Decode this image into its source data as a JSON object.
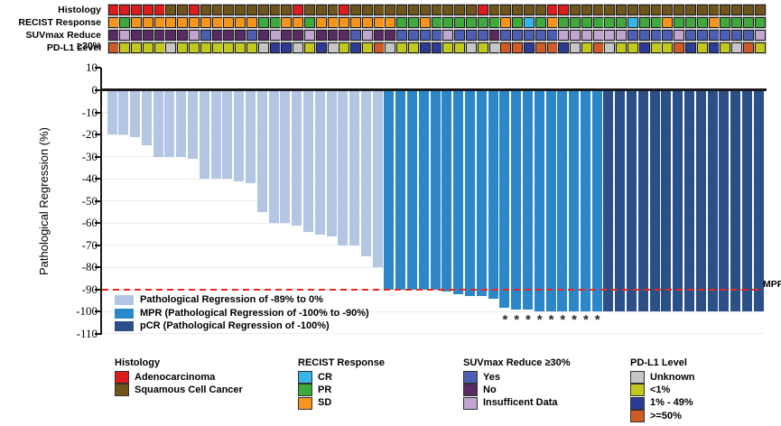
{
  "tracks": {
    "rows": [
      {
        "key": "histology",
        "label": "Histology",
        "codes": [
          "A",
          "A",
          "A",
          "A",
          "A",
          "S",
          "S",
          "A",
          "S",
          "S",
          "S",
          "S",
          "S",
          "S",
          "S",
          "S",
          "A",
          "S",
          "S",
          "S",
          "A",
          "S",
          "S",
          "S",
          "S",
          "S",
          "S",
          "S",
          "S",
          "S",
          "S",
          "S",
          "A",
          "S",
          "S",
          "S",
          "S",
          "S",
          "A",
          "A",
          "S",
          "S",
          "S",
          "S",
          "S",
          "S",
          "S",
          "S",
          "S",
          "S",
          "S",
          "S",
          "S",
          "S",
          "S",
          "S",
          "S"
        ]
      },
      {
        "key": "recist",
        "label": "RECIST Response",
        "codes": [
          "SD",
          "PR",
          "SD",
          "SD",
          "SD",
          "SD",
          "SD",
          "SD",
          "SD",
          "SD",
          "SD",
          "SD",
          "SD",
          "PR",
          "PR",
          "SD",
          "SD",
          "PR",
          "SD",
          "SD",
          "SD",
          "SD",
          "SD",
          "SD",
          "SD",
          "PR",
          "PR",
          "SD",
          "PR",
          "PR",
          "PR",
          "PR",
          "PR",
          "PR",
          "SD",
          "PR",
          "CR",
          "PR",
          "SD",
          "PR",
          "PR",
          "PR",
          "PR",
          "PR",
          "PR",
          "CR",
          "PR",
          "PR",
          "SD",
          "PR",
          "PR",
          "PR",
          "SD",
          "PR",
          "PR",
          "PR",
          "PR"
        ]
      },
      {
        "key": "suvmax",
        "label": "SUVmax Reduce ≥30%",
        "codes": [
          "N",
          "I",
          "N",
          "N",
          "N",
          "N",
          "N",
          "I",
          "Y",
          "N",
          "N",
          "N",
          "Y",
          "N",
          "I",
          "N",
          "N",
          "I",
          "N",
          "N",
          "N",
          "Y",
          "I",
          "N",
          "N",
          "Y",
          "Y",
          "Y",
          "Y",
          "I",
          "Y",
          "Y",
          "Y",
          "N",
          "Y",
          "Y",
          "Y",
          "Y",
          "Y",
          "I",
          "I",
          "I",
          "I",
          "I",
          "I",
          "Y",
          "Y",
          "Y",
          "Y",
          "I",
          "Y",
          "Y",
          "Y",
          "Y",
          "Y",
          "Y",
          "I"
        ]
      },
      {
        "key": "pdl1",
        "label": "PD-L1 Level",
        "codes": [
          "H",
          "L",
          "L",
          "L",
          "L",
          "U",
          "L",
          "L",
          "L",
          "L",
          "L",
          "L",
          "L",
          "U",
          "M",
          "M",
          "U",
          "L",
          "M",
          "U",
          "L",
          "M",
          "L",
          "H",
          "U",
          "L",
          "L",
          "M",
          "M",
          "L",
          "L",
          "U",
          "L",
          "U",
          "H",
          "H",
          "M",
          "H",
          "H",
          "M",
          "U",
          "L",
          "H",
          "U",
          "L",
          "L",
          "M",
          "L",
          "L",
          "H",
          "M",
          "L",
          "M",
          "L",
          "U",
          "H",
          "L"
        ]
      }
    ],
    "code_colors": {
      "histology": {
        "A": "#dd1d1d",
        "S": "#6f551c"
      },
      "recist": {
        "SD": "#f7941e",
        "PR": "#3faa3c",
        "CR": "#38b5e8"
      },
      "suvmax": {
        "Y": "#4d5fb5",
        "N": "#582b63",
        "I": "#c0a5cf"
      },
      "pdl1": {
        "U": "#c6c6c6",
        "L": "#c2c81e",
        "M": "#2c3c94",
        "H": "#cf5b28"
      }
    }
  },
  "chart_data": {
    "type": "bar",
    "subtype": "waterfall",
    "n_bars": 57,
    "ylabel": "Pathological Regression (%)",
    "ylim": [
      -110,
      10
    ],
    "yticks": [
      10,
      0,
      -10,
      -20,
      -30,
      -40,
      -50,
      -60,
      -70,
      -80,
      -90,
      -100,
      -110
    ],
    "values": [
      -20,
      -20,
      -21,
      -25,
      -30,
      -30,
      -30,
      -31,
      -40,
      -40,
      -40,
      -41,
      -42,
      -55,
      -60,
      -60,
      -61,
      -64,
      -65,
      -66,
      -70,
      -70,
      -75,
      -80,
      -90,
      -90,
      -90,
      -90,
      -90,
      -91,
      -92,
      -93,
      -93,
      -94,
      -98,
      -99,
      -99,
      -100,
      -100,
      -100,
      -100,
      -100,
      -100,
      -100,
      -100,
      -100,
      -100,
      -100,
      -100,
      -100,
      -100,
      -100,
      -100,
      -100,
      -100,
      -100,
      -100
    ],
    "group_spans": [
      {
        "code": "R",
        "count": 24
      },
      {
        "code": "M",
        "count": 19
      },
      {
        "code": "P",
        "count": 14
      }
    ],
    "legend": [
      {
        "code": "R",
        "label": "Pathological Regression of -89% to 0%",
        "color": "#b3c6e4"
      },
      {
        "code": "M",
        "label": "MPR (Pathological Regression of -100% to -90%)",
        "color": "#2c87c9"
      },
      {
        "code": "P",
        "label": "pCR (Pathological Regression of -100%)",
        "color": "#2b4f87"
      }
    ],
    "reference_line": {
      "value": -90,
      "label": "MPR",
      "style": "dashed",
      "color": "#f0251b"
    },
    "asterisk_bars": [
      35,
      36,
      37,
      38,
      39,
      40,
      41,
      42,
      43
    ],
    "asterisk_symbol": "*",
    "grid": true,
    "legend_position": "inside bottom-left"
  },
  "bottom_legends": [
    {
      "title": "Histology",
      "items": [
        {
          "label": "Adenocarcinoma",
          "color": "#dd1d1d"
        },
        {
          "label": "Squamous Cell Cancer",
          "color": "#6f551c"
        }
      ]
    },
    {
      "title": "RECIST Response",
      "items": [
        {
          "label": "CR",
          "color": "#38b5e8"
        },
        {
          "label": "PR",
          "color": "#3faa3c"
        },
        {
          "label": "SD",
          "color": "#f7941e"
        }
      ]
    },
    {
      "title": "SUVmax Reduce ≥30%",
      "items": [
        {
          "label": "Yes",
          "color": "#4d5fb5"
        },
        {
          "label": "No",
          "color": "#582b63"
        },
        {
          "label": "Insufficent Data",
          "color": "#c0a5cf"
        }
      ]
    },
    {
      "title": "PD-L1 Level",
      "items": [
        {
          "label": "Unknown",
          "color": "#c6c6c6"
        },
        {
          "label": "<1%",
          "color": "#c2c81e"
        },
        {
          "label": "1% - 49%",
          "color": "#2c3c94"
        },
        {
          "label": ">=50%",
          "color": "#cf5b28"
        }
      ]
    }
  ]
}
